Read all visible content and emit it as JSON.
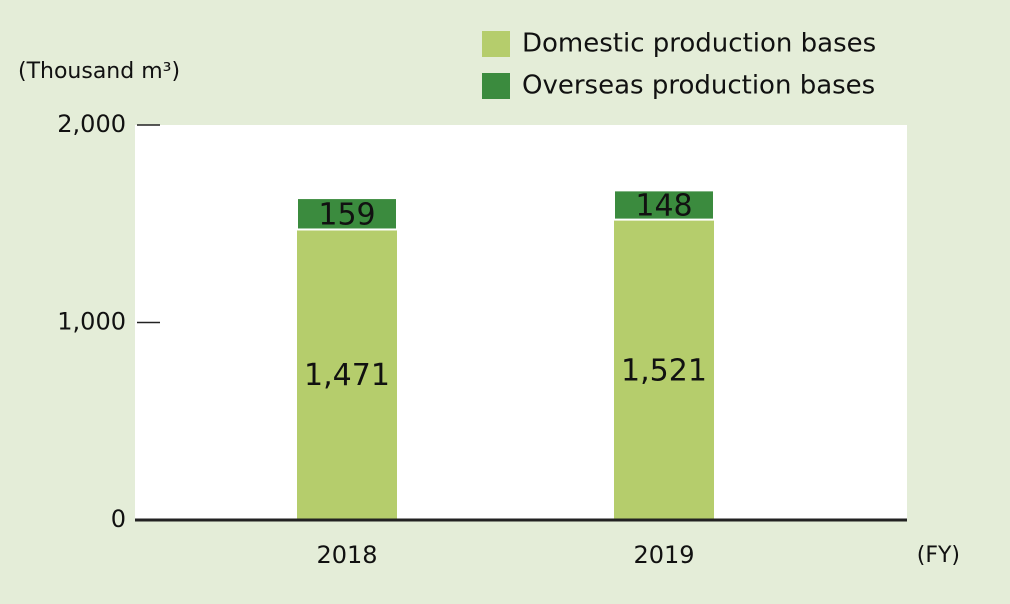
{
  "chart_data": {
    "type": "stacked_bar",
    "y_axis_label": "(Thousand m³)",
    "x_axis_label": "(FY)",
    "categories": [
      "2018",
      "2019"
    ],
    "series": [
      {
        "name": "Domestic production bases",
        "color": "#b5cd6c",
        "values": [
          1471,
          1521
        ],
        "value_labels": [
          "1,471",
          "1,521"
        ]
      },
      {
        "name": "Overseas production bases",
        "color": "#3b8b3e",
        "values": [
          159,
          148
        ]
      }
    ],
    "ylim": [
      0,
      2000
    ],
    "yticks": [
      0,
      {
        "value": 1000,
        "label": "1,000"
      },
      {
        "value": 2000,
        "label": "2,000"
      }
    ],
    "legend": "top-right"
  }
}
